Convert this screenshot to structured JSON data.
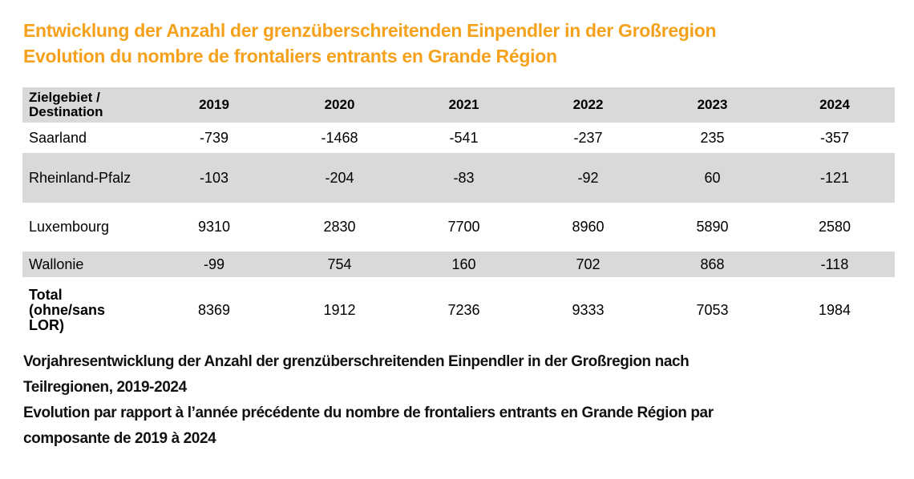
{
  "title": {
    "line1": "Entwicklung der Anzahl der grenzüberschreitenden Einpendler in der Großregion",
    "line2": "Evolution du nombre de frontaliers entrants en Grande Région",
    "color": "#f5a11c"
  },
  "caption": {
    "line1": "Vorjahresentwicklung der Anzahl der grenzüberschreitenden Einpendler in der Großregion nach",
    "line2": "Teilregionen, 2019-2024",
    "line3": "Evolution par rapport à l’année précédente du nombre de frontaliers entrants en Grande Région par",
    "line4": "composante de 2019 à 2024"
  },
  "chart_data": {
    "type": "table",
    "header_label": "Zielgebiet /\nDestination",
    "columns": [
      "2019",
      "2020",
      "2021",
      "2022",
      "2023",
      "2024"
    ],
    "rows": [
      {
        "label": "Saarland",
        "values": [
          "-739",
          "-1468",
          "-541",
          "-237",
          "235",
          "-357"
        ]
      },
      {
        "label": "Rheinland-Pfalz",
        "values": [
          "-103",
          "-204",
          "-83",
          "-92",
          "60",
          "-121"
        ]
      },
      {
        "label": "Luxembourg",
        "values": [
          "9310",
          "2830",
          "7700",
          "8960",
          "5890",
          "2580"
        ]
      },
      {
        "label": "Wallonie",
        "values": [
          "-99",
          "754",
          "160",
          "702",
          "868",
          "-118"
        ]
      },
      {
        "label": "Total\n(ohne/sans\nLOR)",
        "values": [
          "8369",
          "1912",
          "7236",
          "9333",
          "7053",
          "1984"
        ]
      }
    ],
    "band_color": "#d9d9d9"
  }
}
